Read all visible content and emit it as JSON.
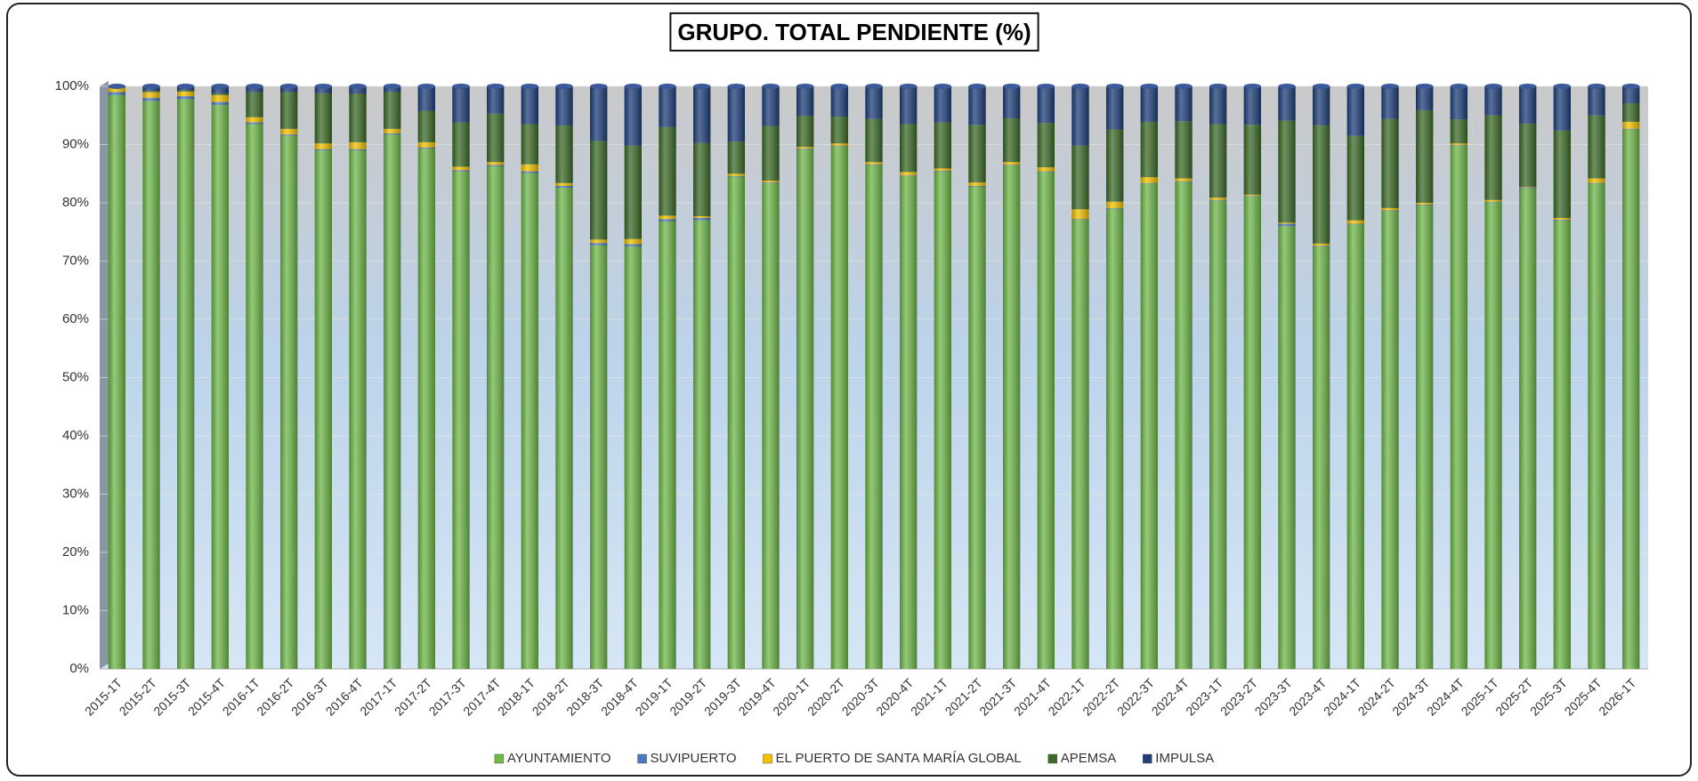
{
  "chart_data": {
    "type": "stacked_bar",
    "title": "GRUPO. TOTAL PENDIENTE (%)",
    "categories": [
      "2015-1T",
      "2015-2T",
      "2015-3T",
      "2015-4T",
      "2016-1T",
      "2016-2T",
      "2016-3T",
      "2016-4T",
      "2017-1T",
      "2017-2T",
      "2017-3T",
      "2017-4T",
      "2018-1T",
      "2018-2T",
      "2018-3T",
      "2018-4T",
      "2019-1T",
      "2019-2T",
      "2019-3T",
      "2019-4T",
      "2020-1T",
      "2020-2T",
      "2020-3T",
      "2020-4T",
      "2021-1T",
      "2021-2T",
      "2021-3T",
      "2021-4T",
      "2022-1T",
      "2022-2T",
      "2022-3T",
      "2022-4T",
      "2023-1T",
      "2023-2T",
      "2023-3T",
      "2023-4T",
      "2024-1T",
      "2024-2T",
      "2024-3T",
      "2024-4T",
      "2025-1T",
      "2025-2T",
      "2025-3T",
      "2025-4T",
      "2026-1T"
    ],
    "series": [
      {
        "name": "AYUNTAMIENTO",
        "color": "#6fb84a",
        "values": [
          98.5,
          97.5,
          97.8,
          96.8,
          93.5,
          91.5,
          89,
          89,
          91.7,
          89.3,
          85.4,
          86.3,
          85.1,
          82.6,
          72.7,
          72.5,
          76.8,
          77,
          84.5,
          83.4,
          89.2,
          89.7,
          86.5,
          84.6,
          85.4,
          82.8,
          86.4,
          85.3,
          77.1,
          79,
          83.3,
          83.6,
          80.4,
          81.1,
          76,
          72.5,
          76.3,
          78.6,
          79.6,
          89.8,
          80.1,
          82.5,
          77,
          83.3,
          92.6
        ]
      },
      {
        "name": "SUVIPUERTO",
        "color": "#4a78c0",
        "values": [
          0.5,
          0.5,
          0.5,
          0.5,
          0.3,
          0.2,
          0.2,
          0.2,
          0.2,
          0.2,
          0.2,
          0.2,
          0.3,
          0.3,
          0.4,
          0.4,
          0.4,
          0.4,
          0.1,
          0.1,
          0.1,
          0.1,
          0.1,
          0.1,
          0.1,
          0.1,
          0.1,
          0.1,
          0.1,
          0.1,
          0.1,
          0.1,
          0.1,
          0.1,
          0.4,
          0.1,
          0.1,
          0.1,
          0.1,
          0.1,
          0.1,
          0.1,
          0.1,
          0.1,
          0.1
        ]
      },
      {
        "name": "EL PUERTO DE SANTA MARÍA GLOBAL",
        "color": "#f2c200",
        "values": [
          0.8,
          1,
          0.8,
          1.2,
          0.9,
          1,
          1,
          1.2,
          0.8,
          0.9,
          0.6,
          0.5,
          1.2,
          0.5,
          0.6,
          0.9,
          0.6,
          0.3,
          0.4,
          0.3,
          0.3,
          0.4,
          0.4,
          0.6,
          0.4,
          0.6,
          0.5,
          0.7,
          1.7,
          1.1,
          1,
          0.5,
          0.4,
          0.2,
          0.2,
          0.4,
          0.6,
          0.4,
          0.3,
          0.3,
          0.3,
          0.1,
          0.3,
          0.8,
          1.2
        ]
      },
      {
        "name": "APEMSA",
        "color": "#3d6b28",
        "values": [
          0.1,
          0.2,
          0.2,
          0.3,
          4.3,
          6.3,
          8.6,
          8.3,
          6.3,
          5.4,
          7.6,
          8.3,
          6.9,
          9.9,
          16.9,
          16,
          15.2,
          12.6,
          5.5,
          9.4,
          5.3,
          4.6,
          7.4,
          8.2,
          7.9,
          9.9,
          7.5,
          7.6,
          10.9,
          12.4,
          9.5,
          9.8,
          12.6,
          12,
          17.5,
          20.3,
          14.5,
          15.3,
          15.9,
          4.1,
          14.5,
          10.9,
          15,
          10.8,
          3.2
        ]
      },
      {
        "name": "IMPULSA",
        "color": "#1f3f7a",
        "values": [
          0.1,
          0.8,
          0.7,
          1.2,
          1,
          1,
          1.2,
          1.3,
          1,
          4.2,
          6.2,
          4.7,
          6.5,
          6.7,
          9.4,
          10.2,
          7,
          9.7,
          9.5,
          6.8,
          5.1,
          5.2,
          5.6,
          6.5,
          6.2,
          6.6,
          5.5,
          6.3,
          10.2,
          7.4,
          6.1,
          6,
          6.5,
          6.6,
          5.9,
          6.7,
          8.5,
          5.6,
          4.1,
          5.7,
          5,
          6.4,
          7.6,
          5,
          2.9
        ]
      }
    ],
    "ylim": [
      0,
      100
    ],
    "yticks": [
      {
        "value": 0,
        "label": "0%"
      },
      {
        "value": 10,
        "label": "10%"
      },
      {
        "value": 20,
        "label": "20%"
      },
      {
        "value": 30,
        "label": "30%"
      },
      {
        "value": 40,
        "label": "40%"
      },
      {
        "value": 50,
        "label": "50%"
      },
      {
        "value": 60,
        "label": "60%"
      },
      {
        "value": 70,
        "label": "70%"
      },
      {
        "value": 80,
        "label": "80%"
      },
      {
        "value": 90,
        "label": "90%"
      },
      {
        "value": 100,
        "label": "100%"
      }
    ],
    "grid": true,
    "legend": "bottom"
  }
}
